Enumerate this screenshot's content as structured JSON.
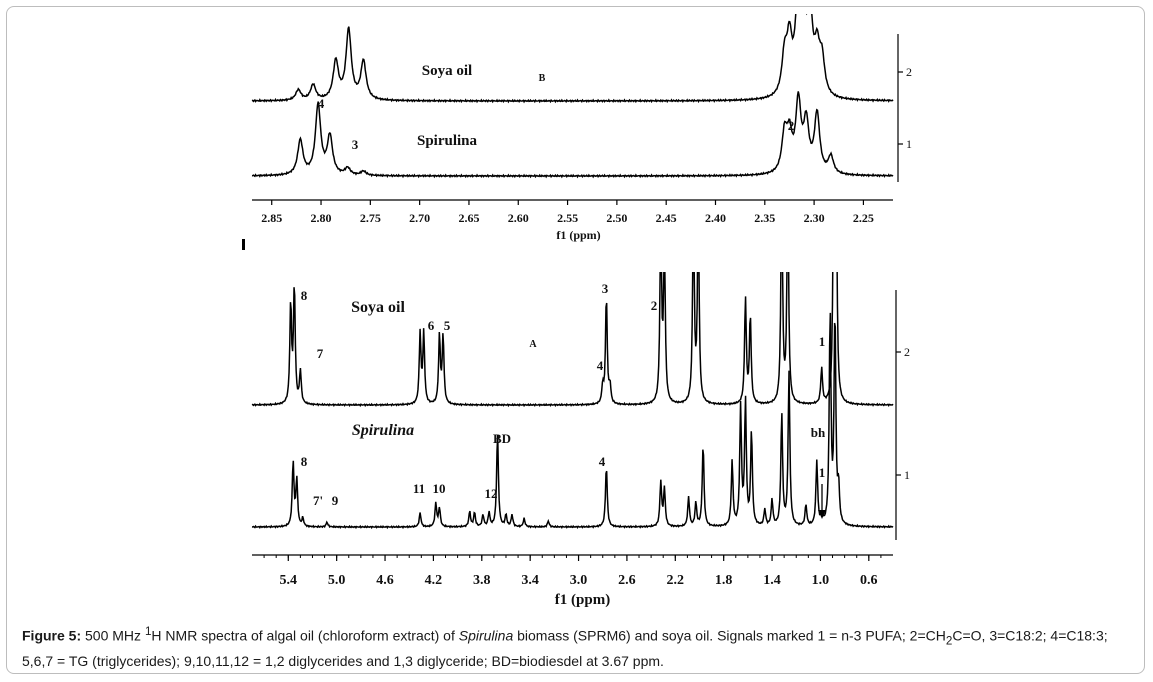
{
  "chart_data": [
    {
      "type": "line",
      "panel": "B",
      "panel_label": "B",
      "xlabel": "f1 (ppm)",
      "x_ticks": [
        "2.85",
        "2.80",
        "2.75",
        "2.70",
        "2.65",
        "2.60",
        "2.55",
        "2.50",
        "2.45",
        "2.40",
        "2.35",
        "2.30",
        "2.25"
      ],
      "xlim": [
        2.87,
        2.22
      ],
      "y_ticks": [
        "2",
        "1"
      ],
      "series": [
        {
          "name": "Soya oil",
          "peaks": [
            {
              "x": 2.823,
              "h": 0.15
            },
            {
              "x": 2.808,
              "h": 0.22
            },
            {
              "x": 2.785,
              "h": 0.55
            },
            {
              "x": 2.772,
              "h": 1.0
            },
            {
              "x": 2.757,
              "h": 0.55
            },
            {
              "x": 2.33,
              "h": 0.55
            },
            {
              "x": 2.325,
              "h": 0.75
            },
            {
              "x": 2.317,
              "h": 1.0
            },
            {
              "x": 2.311,
              "h": 1.25
            },
            {
              "x": 2.304,
              "h": 1.05
            },
            {
              "x": 2.297,
              "h": 0.6
            },
            {
              "x": 2.292,
              "h": 0.5
            }
          ]
        },
        {
          "name": "Spirulina",
          "peaks": [
            {
              "x": 2.821,
              "h": 0.5
            },
            {
              "x": 2.803,
              "h": 1.0
            },
            {
              "x": 2.791,
              "h": 0.55
            },
            {
              "x": 2.773,
              "h": 0.1
            },
            {
              "x": 2.757,
              "h": 0.06
            },
            {
              "x": 2.33,
              "h": 0.55
            },
            {
              "x": 2.325,
              "h": 0.5
            },
            {
              "x": 2.316,
              "h": 1.0
            },
            {
              "x": 2.308,
              "h": 0.7
            },
            {
              "x": 2.297,
              "h": 0.85
            },
            {
              "x": 2.283,
              "h": 0.25
            }
          ]
        }
      ],
      "annotations": [
        {
          "text": "4",
          "x": 2.803,
          "series": "Spirulina"
        },
        {
          "text": "3",
          "x": 2.773,
          "series": "Spirulina"
        },
        {
          "text": "2",
          "x": 2.33,
          "series": "Spirulina"
        }
      ]
    },
    {
      "type": "line",
      "panel": "A",
      "panel_label": "A",
      "xlabel": "f1 (ppm)",
      "x_ticks": [
        "5.4",
        "5.0",
        "4.6",
        "4.2",
        "3.8",
        "3.4",
        "3.0",
        "2.6",
        "2.2",
        "1.8",
        "1.4",
        "1.0",
        "0.6"
      ],
      "xlim": [
        5.7,
        0.4
      ],
      "y_ticks": [
        "2",
        "1"
      ],
      "series": [
        {
          "name": "Soya oil",
          "peaks": [
            {
              "x": 5.38,
              "h": 0.85
            },
            {
              "x": 5.35,
              "h": 1.0
            },
            {
              "x": 5.3,
              "h": 0.28
            },
            {
              "x": 4.31,
              "h": 0.6
            },
            {
              "x": 4.28,
              "h": 0.6
            },
            {
              "x": 4.15,
              "h": 0.58
            },
            {
              "x": 4.12,
              "h": 0.58
            },
            {
              "x": 2.8,
              "h": 0.15
            },
            {
              "x": 2.77,
              "h": 0.92
            },
            {
              "x": 2.74,
              "h": 0.15
            },
            {
              "x": 2.32,
              "h": 1.5
            },
            {
              "x": 2.29,
              "h": 1.3
            },
            {
              "x": 2.05,
              "h": 1.6
            },
            {
              "x": 2.01,
              "h": 1.6
            },
            {
              "x": 1.62,
              "h": 0.9
            },
            {
              "x": 1.58,
              "h": 0.75
            },
            {
              "x": 1.32,
              "h": 1.8
            },
            {
              "x": 1.27,
              "h": 1.8
            },
            {
              "x": 0.99,
              "h": 0.3
            },
            {
              "x": 0.89,
              "h": 1.8
            },
            {
              "x": 0.87,
              "h": 1.8
            }
          ]
        },
        {
          "name": "Spirulina",
          "peaks": [
            {
              "x": 5.36,
              "h": 0.55
            },
            {
              "x": 5.33,
              "h": 0.4
            },
            {
              "x": 5.28,
              "h": 0.07
            },
            {
              "x": 5.08,
              "h": 0.04
            },
            {
              "x": 4.31,
              "h": 0.12
            },
            {
              "x": 4.18,
              "h": 0.2
            },
            {
              "x": 4.15,
              "h": 0.16
            },
            {
              "x": 3.9,
              "h": 0.13
            },
            {
              "x": 3.86,
              "h": 0.12
            },
            {
              "x": 3.79,
              "h": 0.1
            },
            {
              "x": 3.74,
              "h": 0.12
            },
            {
              "x": 3.67,
              "h": 0.8
            },
            {
              "x": 3.6,
              "h": 0.1
            },
            {
              "x": 3.55,
              "h": 0.1
            },
            {
              "x": 3.45,
              "h": 0.07
            },
            {
              "x": 3.25,
              "h": 0.05
            },
            {
              "x": 2.77,
              "h": 0.52
            },
            {
              "x": 2.32,
              "h": 0.38
            },
            {
              "x": 2.29,
              "h": 0.32
            },
            {
              "x": 2.09,
              "h": 0.25
            },
            {
              "x": 2.03,
              "h": 0.2
            },
            {
              "x": 1.97,
              "h": 0.7
            },
            {
              "x": 1.73,
              "h": 0.55
            },
            {
              "x": 1.66,
              "h": 1.0
            },
            {
              "x": 1.62,
              "h": 1.05
            },
            {
              "x": 1.57,
              "h": 0.8
            },
            {
              "x": 1.46,
              "h": 0.14
            },
            {
              "x": 1.4,
              "h": 0.22
            },
            {
              "x": 1.32,
              "h": 0.95
            },
            {
              "x": 1.26,
              "h": 1.3
            },
            {
              "x": 1.12,
              "h": 0.18
            },
            {
              "x": 1.03,
              "h": 0.55
            },
            {
              "x": 0.99,
              "h": 0.08
            },
            {
              "x": 0.92,
              "h": 1.8
            },
            {
              "x": 0.88,
              "h": 1.8
            },
            {
              "x": 0.85,
              "h": 0.3
            }
          ]
        }
      ],
      "annotations": [
        {
          "text": "8",
          "x": 5.35,
          "series": "Soya oil"
        },
        {
          "text": "7",
          "x": 5.3,
          "series": "Soya oil"
        },
        {
          "text": "6",
          "x": 4.3,
          "series": "Soya oil"
        },
        {
          "text": "5",
          "x": 4.13,
          "series": "Soya oil"
        },
        {
          "text": "A",
          "x": 3.26,
          "series": "Soya oil"
        },
        {
          "text": "4",
          "x": 2.8,
          "series": "Soya oil"
        },
        {
          "text": "3",
          "x": 2.77,
          "series": "Soya oil"
        },
        {
          "text": "2",
          "x": 2.32,
          "series": "Soya oil"
        },
        {
          "text": "1",
          "x": 0.99,
          "series": "Soya oil"
        },
        {
          "text": "BD",
          "x": 3.67,
          "series": "Spirulina"
        },
        {
          "text": "bh",
          "x": 0.99,
          "series": "Spirulina"
        },
        {
          "text": "8",
          "x": 5.36,
          "series": "Spirulina"
        },
        {
          "text": "7'",
          "x": 5.24,
          "series": "Spirulina"
        },
        {
          "text": "9",
          "x": 5.11,
          "series": "Spirulina"
        },
        {
          "text": "11",
          "x": 4.33,
          "series": "Spirulina"
        },
        {
          "text": "10",
          "x": 4.18,
          "series": "Spirulina"
        },
        {
          "text": "12",
          "x": 3.78,
          "series": "Spirulina"
        },
        {
          "text": "4",
          "x": 2.77,
          "series": "Spirulina"
        },
        {
          "text": "1",
          "x": 0.99,
          "series": "Spirulina"
        }
      ]
    }
  ],
  "caption": {
    "label": "Figure 5:",
    "t1": " 500 MHz ",
    "sup": "1",
    "t2": "H NMR spectra of algal oil (chloroform extract) of ",
    "species": "Spirulina",
    "t3": " biomass (SPRM6) and soya oil. Signals marked 1 = n-3 PUFA; 2=CH",
    "sub": "2",
    "t4": "C=O, 3=C18:2; 4=C18:3; 5,6,7 = TG (triglycerides); 9,10,11,12 = 1,2 diglycerides and 1,3 diglyceride; BD=biodiesdel at 3.67 ppm."
  }
}
